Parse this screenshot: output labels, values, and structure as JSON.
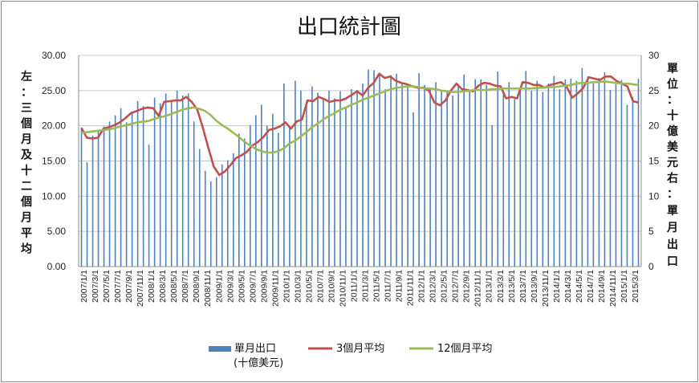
{
  "chart_data": {
    "type": "bar",
    "title": "出口統計圖",
    "left_axis_label": "左：三個月及十二個月平均",
    "right_axis_label": "單位：十億美元右：單月出口",
    "yleft": {
      "range": [
        0,
        30
      ],
      "ticks": [
        "0.00",
        "5.00",
        "10.00",
        "15.00",
        "20.00",
        "25.00",
        "30.00"
      ]
    },
    "yright": {
      "range": [
        0,
        30
      ],
      "ticks": [
        "0",
        "5",
        "10",
        "15",
        "20",
        "25",
        "30"
      ]
    },
    "grid": true,
    "legend_position": "bottom",
    "x_labels": [
      "2007/1/1",
      "2007/3/1",
      "2007/5/1",
      "2007/7/1",
      "2007/9/1",
      "2007/11/1",
      "2008/1/1",
      "2008/3/1",
      "2008/5/1",
      "2008/7/1",
      "2008/9/1",
      "2008/11/1",
      "2009/1/1",
      "2009/3/1",
      "2009/5/1",
      "2009/7/1",
      "2009/9/1",
      "2009/11/1",
      "2010/1/1",
      "2010/3/1",
      "2010/5/1",
      "2010/7/1",
      "2010/9/1",
      "2010/11/1",
      "2011/1/1",
      "2011/3/1",
      "2011/5/1",
      "2011/7/1",
      "2011/9/1",
      "2011/11/1",
      "2012/1/1",
      "2012/3/1",
      "2012/5/1",
      "2012/7/1",
      "2012/9/1",
      "2012/11/1",
      "2013/1/1",
      "2013/3/1",
      "2013/5/1",
      "2013/7/1",
      "2013/9/1",
      "2013/11/1",
      "2014/1/1",
      "2014/3/1",
      "2014/5/1",
      "2014/7/1",
      "2014/9/1",
      "2014/11/1",
      "2015/1/1",
      "2015/3/1"
    ],
    "series": [
      {
        "name": "單月出口\n(十億美元)",
        "type": "bar",
        "axis": "right",
        "color": "#4f81bd",
        "values": [
          19.7,
          14.8,
          18.6,
          19.4,
          19.9,
          20.6,
          21.5,
          22.5,
          20.5,
          21.8,
          23.5,
          22.8,
          17.3,
          24.0,
          23.2,
          24.6,
          23.4,
          25.0,
          24.3,
          24.6,
          20.6,
          16.7,
          13.6,
          12.1,
          12.7,
          14.5,
          15.1,
          16.1,
          18.9,
          18.2,
          20.1,
          21.5,
          23.0,
          20.0,
          21.7,
          19.0,
          26.0,
          19.8,
          26.4,
          25.0,
          23.5,
          25.6,
          24.7,
          23.8,
          25.0,
          23.9,
          24.9,
          22.5,
          25.2,
          25.1,
          26.0,
          28.0,
          27.9,
          27.3,
          25.2,
          27.2,
          27.4,
          26.1,
          25.9,
          21.9,
          27.5,
          25.8,
          25.4,
          26.2,
          25.0,
          24.8,
          24.3,
          25.9,
          27.3,
          25.0,
          26.6,
          26.6,
          25.8,
          20.1,
          27.7,
          24.5,
          26.2,
          23.8,
          25.4,
          27.8,
          25.0,
          26.4,
          24.8,
          26.0,
          27.1,
          25.2,
          26.6,
          26.7,
          26.4,
          28.2,
          27.0,
          26.0,
          26.8,
          27.6,
          25.1,
          26.4,
          26.5,
          23.0,
          24.1,
          26.7
        ]
      },
      {
        "name": "3個月平均",
        "type": "line",
        "axis": "left",
        "color": "#c0504d",
        "values": [
          19.7,
          18.3,
          18.2,
          18.3,
          19.6,
          19.8,
          20.1,
          20.5,
          21.1,
          21.8,
          22.1,
          22.4,
          22.6,
          22.5,
          21.4,
          23.4,
          23.5,
          23.6,
          23.6,
          24.1,
          23.4,
          22.3,
          19.8,
          16.9,
          14.2,
          13.0,
          13.5,
          14.4,
          15.4,
          15.8,
          16.3,
          17.2,
          17.7,
          18.4,
          19.4,
          19.6,
          19.9,
          20.5,
          19.6,
          20.6,
          20.9,
          23.6,
          23.5,
          24.1,
          23.8,
          23.4,
          23.6,
          23.6,
          23.9,
          24.4,
          24.9,
          24.3,
          25.4,
          26.1,
          27.4,
          26.8,
          27.0,
          26.4,
          26.1,
          25.9,
          25.6,
          25.4,
          25.4,
          25.0,
          23.3,
          22.9,
          23.6,
          25.0,
          26.0,
          25.2,
          25.1,
          24.9,
          25.7,
          26.1,
          26.0,
          25.7,
          25.6,
          23.9,
          24.1,
          23.9,
          26.2,
          26.1,
          25.8,
          25.8,
          25.4,
          25.8,
          26.0,
          26.2,
          25.5,
          24.0,
          24.6,
          25.4,
          26.9,
          26.7,
          26.5,
          27.0,
          27.0,
          26.4,
          26.0,
          25.6,
          23.5,
          23.3
        ]
      },
      {
        "name": "12個月平均",
        "type": "line",
        "axis": "left",
        "color": "#9bbb59",
        "values": [
          19.0,
          19.1,
          19.2,
          19.3,
          19.4,
          19.5,
          19.7,
          19.9,
          20.1,
          20.3,
          20.5,
          20.6,
          20.7,
          21.0,
          21.2,
          21.4,
          21.7,
          22.0,
          22.3,
          22.5,
          22.6,
          22.4,
          22.1,
          21.5,
          20.7,
          20.1,
          19.6,
          19.0,
          18.4,
          17.7,
          17.2,
          16.7,
          16.4,
          16.2,
          16.2,
          16.4,
          16.8,
          17.5,
          17.9,
          18.5,
          19.1,
          19.8,
          20.3,
          20.9,
          21.4,
          21.8,
          22.3,
          22.6,
          23.0,
          23.3,
          23.7,
          24.0,
          24.3,
          24.6,
          24.9,
          25.2,
          25.4,
          25.5,
          25.6,
          25.6,
          25.5,
          25.3,
          25.3,
          25.2,
          25.0,
          24.9,
          24.8,
          24.8,
          24.9,
          25.0,
          25.1,
          25.1,
          25.1,
          25.2,
          25.2,
          25.3,
          25.3,
          25.3,
          25.3,
          25.3,
          25.3,
          25.4,
          25.4,
          25.5,
          25.5,
          25.6,
          25.7,
          25.8,
          26.0,
          26.1,
          26.1,
          26.2,
          26.2,
          26.3,
          26.2,
          26.1,
          26.0,
          26.0,
          25.9,
          25.8
        ]
      }
    ]
  }
}
